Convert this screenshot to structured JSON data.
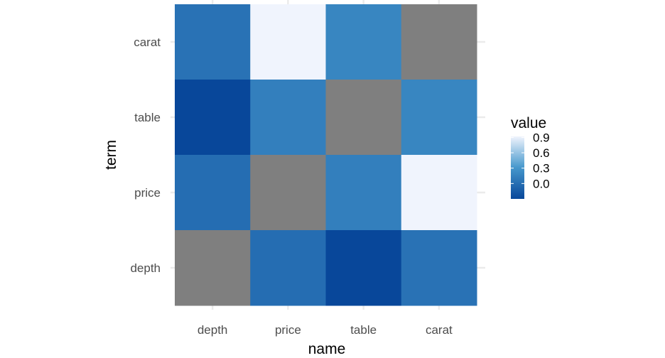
{
  "chart_data": {
    "type": "heatmap",
    "xlabel": "name",
    "ylabel": "term",
    "x_categories": [
      "depth",
      "price",
      "table",
      "carat"
    ],
    "y_categories": [
      "depth",
      "price",
      "table",
      "carat"
    ],
    "cells": [
      {
        "x": "depth",
        "y": "carat",
        "value": 0.03
      },
      {
        "x": "price",
        "y": "carat",
        "value": 0.92
      },
      {
        "x": "table",
        "y": "carat",
        "value": 0.18
      },
      {
        "x": "carat",
        "y": "carat",
        "value": null
      },
      {
        "x": "depth",
        "y": "table",
        "value": -0.3
      },
      {
        "x": "price",
        "y": "table",
        "value": 0.13
      },
      {
        "x": "table",
        "y": "table",
        "value": null
      },
      {
        "x": "carat",
        "y": "table",
        "value": 0.18
      },
      {
        "x": "depth",
        "y": "price",
        "value": -0.01
      },
      {
        "x": "price",
        "y": "price",
        "value": null
      },
      {
        "x": "table",
        "y": "price",
        "value": 0.13
      },
      {
        "x": "carat",
        "y": "price",
        "value": 0.92
      },
      {
        "x": "depth",
        "y": "depth",
        "value": null
      },
      {
        "x": "price",
        "y": "depth",
        "value": -0.01
      },
      {
        "x": "table",
        "y": "depth",
        "value": -0.3
      },
      {
        "x": "carat",
        "y": "depth",
        "value": 0.03
      }
    ],
    "na_color": "#7f7f7f",
    "color_scale": {
      "low_value": -0.3,
      "high_value": 0.92,
      "low_color": "#08479a",
      "high_color": "#f0f4fd",
      "mid_color": "#4597cc"
    },
    "legend": {
      "title": "value",
      "position": "right",
      "breaks": [
        0.9,
        0.6,
        0.3,
        0.0
      ],
      "labels": [
        "0.9",
        "0.6",
        "0.3",
        "0.0"
      ]
    },
    "grid": true
  }
}
